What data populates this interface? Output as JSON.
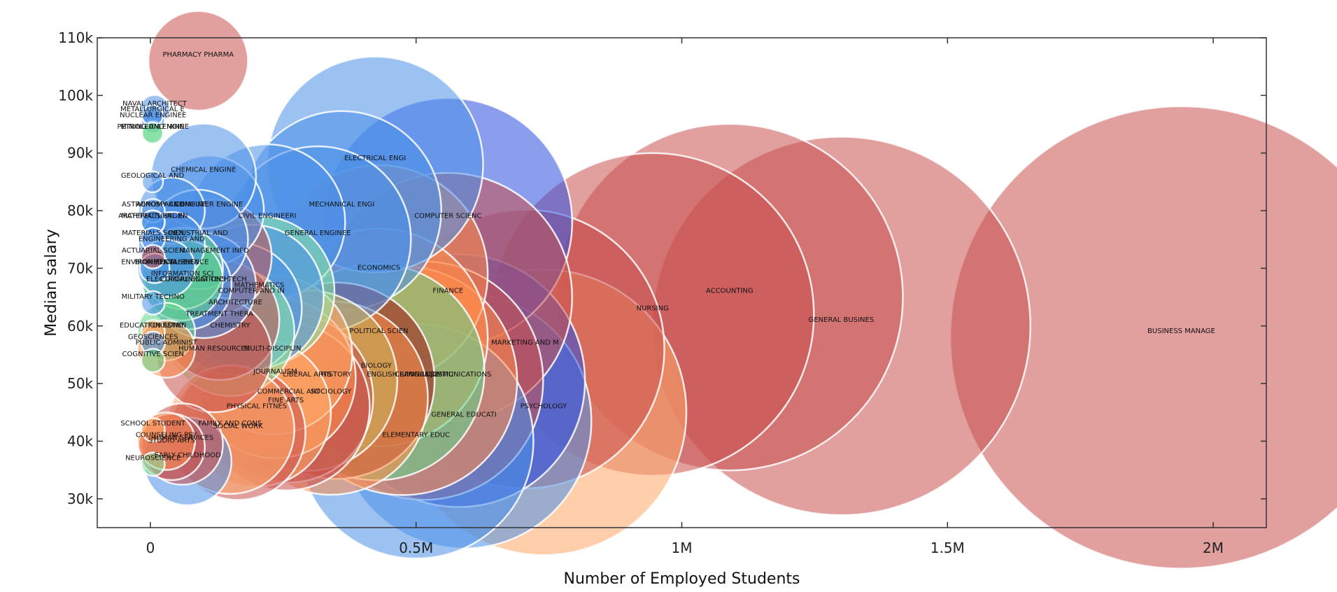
{
  "chart_data": {
    "type": "scatter",
    "xlabel": "Number of Employed Students",
    "ylabel": "Median salary",
    "xlim": [
      -100000,
      2100000
    ],
    "ylim": [
      25000,
      110000
    ],
    "xticks": [
      0,
      500000,
      1000000,
      1500000,
      2000000
    ],
    "xtick_labels": [
      "0",
      "0.5M",
      "1M",
      "1.5M",
      "2M"
    ],
    "yticks": [
      30000,
      40000,
      50000,
      60000,
      70000,
      80000,
      90000,
      100000,
      110000
    ],
    "ytick_labels": [
      "30k",
      "40k",
      "50k",
      "60k",
      "70k",
      "80k",
      "90k",
      "100k",
      "110k"
    ],
    "grid": false,
    "legend": "none",
    "size_encodes": "Number of Employed Students",
    "colors": {
      "red": "#c8504e",
      "blue": "#4a90e8",
      "navy": "#2b4fe0",
      "orange": "#ff8c4a",
      "peach": "#ffa868",
      "green": "#5ed68a",
      "lightgreen": "#88e8a0",
      "darkred": "#a01818",
      "olive": "#c8b45a",
      "rose": "#d38080"
    },
    "points": [
      {
        "label": "PHARMACY PHARMA",
        "x": 90000,
        "y": 106000,
        "color": "red"
      },
      {
        "label": "NAVAL ARCHITECT",
        "x": 8000,
        "y": 97500,
        "color": "blue"
      },
      {
        "label": "METALLURGICAL E",
        "x": 4000,
        "y": 96500,
        "color": "blue"
      },
      {
        "label": "NUCLEAR ENGINEE",
        "x": 5000,
        "y": 95500,
        "color": "blue"
      },
      {
        "label": "MINING AND MINE",
        "x": 4000,
        "y": 93500,
        "color": "green"
      },
      {
        "label": "PETROLEUM ENGINE",
        "x": 5000,
        "y": 93500,
        "color": "lightgreen"
      },
      {
        "label": "CHEMICAL ENGINE",
        "x": 100000,
        "y": 86000,
        "color": "blue"
      },
      {
        "label": "GEOLOGICAL AND",
        "x": 4000,
        "y": 85000,
        "color": "blue"
      },
      {
        "label": "ELECTRICAL ENGI",
        "x": 423000,
        "y": 88000,
        "color": "blue"
      },
      {
        "label": "ASTRONOMY AND",
        "x": 5000,
        "y": 80000,
        "color": "blue"
      },
      {
        "label": "AEROSPACE ENGINE",
        "x": 40000,
        "y": 80000,
        "color": "blue"
      },
      {
        "label": "COMPUTER ENGINE",
        "x": 110000,
        "y": 80000,
        "color": "blue"
      },
      {
        "label": "MATERIALS ENGIN",
        "x": 5000,
        "y": 78000,
        "color": "blue"
      },
      {
        "label": "ARCHITECTURAL EN",
        "x": 5000,
        "y": 78000,
        "color": "blue"
      },
      {
        "label": "CIVIL ENGINEERI",
        "x": 220000,
        "y": 78000,
        "color": "blue"
      },
      {
        "label": "MECHANICAL ENGI",
        "x": 360000,
        "y": 80000,
        "color": "blue"
      },
      {
        "label": "COMPUTER SCIENC",
        "x": 560000,
        "y": 78000,
        "color": "navy"
      },
      {
        "label": "GENERAL ENGINEE",
        "x": 315000,
        "y": 75000,
        "color": "blue"
      },
      {
        "label": "MATERIALS SCIEN",
        "x": 5000,
        "y": 75000,
        "color": "blue"
      },
      {
        "label": "INDUSTRIAL AND",
        "x": 90000,
        "y": 75000,
        "color": "blue"
      },
      {
        "label": "ENGINEERING AND",
        "x": 40000,
        "y": 74000,
        "color": "blue"
      },
      {
        "label": "ACTUARIAL SCIEN",
        "x": 5000,
        "y": 72000,
        "color": "red"
      },
      {
        "label": "MANAGEMENT INFO",
        "x": 120000,
        "y": 72000,
        "color": "red"
      },
      {
        "label": "ENVIRONMENTAL E",
        "x": 8000,
        "y": 70000,
        "color": "blue"
      },
      {
        "label": "BIOMEDICAL ENGI",
        "x": 30000,
        "y": 70000,
        "color": "blue"
      },
      {
        "label": "FOOD SCIENCE",
        "x": 60000,
        "y": 70000,
        "color": "green"
      },
      {
        "label": "ECONOMICS",
        "x": 430000,
        "y": 69000,
        "color": "orange"
      },
      {
        "label": "INFORMATION SCI",
        "x": 60000,
        "y": 68000,
        "color": "green"
      },
      {
        "label": "ELECTRICAL ENGI TECH",
        "x": 70000,
        "y": 67000,
        "color": "blue"
      },
      {
        "label": "COMMUNICATIONS TECH",
        "x": 100000,
        "y": 67000,
        "color": "blue"
      },
      {
        "label": "MATHEMATICS",
        "x": 205000,
        "y": 66000,
        "color": "lightgreen"
      },
      {
        "label": "COMPUTER AND IN",
        "x": 190000,
        "y": 65000,
        "color": "blue"
      },
      {
        "label": "FINANCE",
        "x": 560000,
        "y": 65000,
        "color": "red"
      },
      {
        "label": "ACCOUNTING",
        "x": 1090000,
        "y": 65000,
        "color": "red"
      },
      {
        "label": "MILITARY TECHNO",
        "x": 5000,
        "y": 64000,
        "color": "blue"
      },
      {
        "label": "ARCHITECTURE",
        "x": 160000,
        "y": 63000,
        "color": "blue"
      },
      {
        "label": "NURSING",
        "x": 945000,
        "y": 62000,
        "color": "red"
      },
      {
        "label": "TREATMENT THERA",
        "x": 130000,
        "y": 61000,
        "color": "red"
      },
      {
        "label": "GENERAL BUSINES",
        "x": 1300000,
        "y": 60000,
        "color": "red"
      },
      {
        "label": "CHEMISTRY",
        "x": 150000,
        "y": 59000,
        "color": "lightgreen"
      },
      {
        "label": "BUSINESS MANAGE",
        "x": 1940000,
        "y": 58000,
        "color": "red"
      },
      {
        "label": "POLITICAL SCIEN",
        "x": 430000,
        "y": 58000,
        "color": "orange"
      },
      {
        "label": "EDUCATION ADMIN",
        "x": 5000,
        "y": 59000,
        "color": "peach"
      },
      {
        "label": "FORESTRY",
        "x": 30000,
        "y": 59000,
        "color": "green"
      },
      {
        "label": "GEOSCIENCES",
        "x": 5000,
        "y": 57000,
        "color": "blue"
      },
      {
        "label": "MARKETING AND M",
        "x": 705000,
        "y": 56000,
        "color": "red"
      },
      {
        "label": "MULTI-DISCIPLIN",
        "x": 230000,
        "y": 55000,
        "color": "peach"
      },
      {
        "label": "PUBLIC ADMINIST",
        "x": 30000,
        "y": 56000,
        "color": "orange"
      },
      {
        "label": "HUMAN RESOURCES",
        "x": 120000,
        "y": 55000,
        "color": "red"
      },
      {
        "label": "COGNITIVE SCIEN",
        "x": 5000,
        "y": 54000,
        "color": "green"
      },
      {
        "label": "BIOLOGY",
        "x": 425000,
        "y": 52000,
        "color": "green"
      },
      {
        "label": "JOURNALISM",
        "x": 235000,
        "y": 51000,
        "color": "orange"
      },
      {
        "label": "LIBERAL ARTS",
        "x": 295000,
        "y": 50500,
        "color": "olive"
      },
      {
        "label": "HISTORY",
        "x": 350000,
        "y": 50500,
        "color": "darkred"
      },
      {
        "label": "ENGLISH LANGUAGE",
        "x": 475000,
        "y": 50500,
        "color": "orange"
      },
      {
        "label": "CRIMINAL JUSTIC",
        "x": 515000,
        "y": 50500,
        "color": "red"
      },
      {
        "label": "COMMUNICATIONS",
        "x": 580000,
        "y": 50500,
        "color": "navy"
      },
      {
        "label": "COMMERCIAL ART",
        "x": 260000,
        "y": 47500,
        "color": "red"
      },
      {
        "label": "SOCIOLOGY",
        "x": 340000,
        "y": 47500,
        "color": "orange"
      },
      {
        "label": "FINE ARTS",
        "x": 255000,
        "y": 46000,
        "color": "red"
      },
      {
        "label": "PHYSICAL FITNES",
        "x": 200000,
        "y": 45000,
        "color": "peach"
      },
      {
        "label": "GENERAL EDUCATI",
        "x": 590000,
        "y": 43500,
        "color": "blue"
      },
      {
        "label": "PSYCHOLOGY",
        "x": 740000,
        "y": 45000,
        "color": "peach"
      },
      {
        "label": "ELEMENTARY EDUC",
        "x": 500000,
        "y": 40000,
        "color": "blue"
      },
      {
        "label": "SCHOOL STUDENT",
        "x": 5000,
        "y": 42000,
        "color": "peach"
      },
      {
        "label": "FAMILY AND CONS",
        "x": 150000,
        "y": 42000,
        "color": "peach"
      },
      {
        "label": "SOCIAL WORK",
        "x": 165000,
        "y": 41500,
        "color": "red"
      },
      {
        "label": "COUNSELING PSY",
        "x": 30000,
        "y": 40000,
        "color": "orange"
      },
      {
        "label": "HUMAN SERVICES",
        "x": 60000,
        "y": 39500,
        "color": "red"
      },
      {
        "label": "STUDIO ARTS",
        "x": 40000,
        "y": 39000,
        "color": "red"
      },
      {
        "label": "EARLY CHILDHOOD",
        "x": 70000,
        "y": 36500,
        "color": "blue"
      },
      {
        "label": "NEUROSCIENCE",
        "x": 5000,
        "y": 36000,
        "color": "lightgreen"
      }
    ]
  }
}
